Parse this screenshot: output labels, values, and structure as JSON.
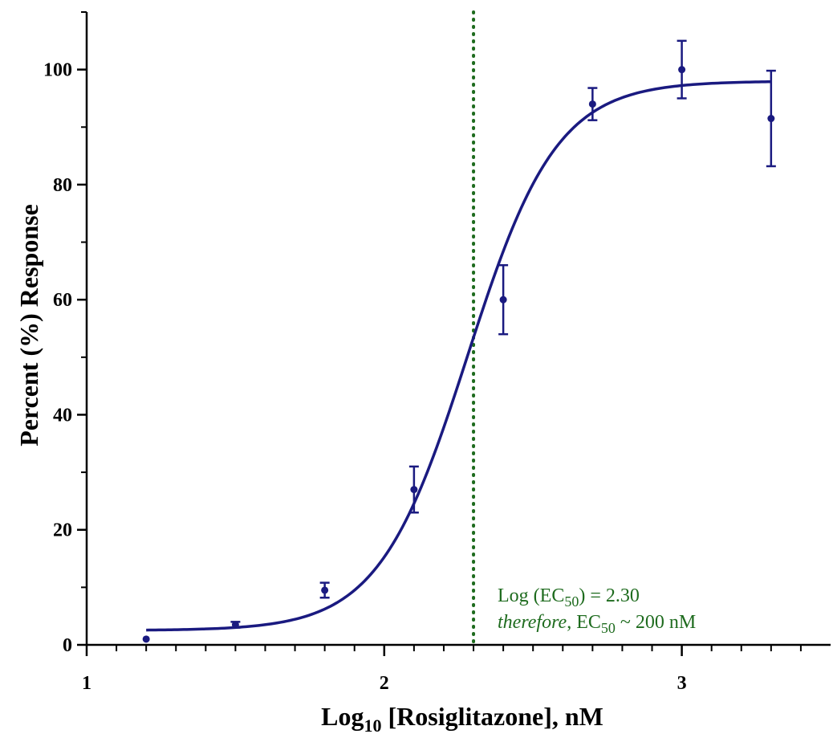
{
  "chart_data": {
    "type": "scatter",
    "xlabel": {
      "main": "Log",
      "sub": "10",
      "rest": " [Rosiglitazone], nM"
    },
    "ylabel": "Percent (%) Response",
    "xlim": [
      1,
      3.5
    ],
    "ylim": [
      0,
      110
    ],
    "x_ticks": [
      1,
      2,
      3
    ],
    "x_tick_labels": [
      "1",
      "2",
      "3"
    ],
    "y_ticks": [
      0,
      20,
      40,
      60,
      80,
      100
    ],
    "y_tick_labels": [
      "0",
      "20",
      "40",
      "60",
      "80",
      "100"
    ],
    "grid": false,
    "series": [
      {
        "x": [
          1.2,
          1.5,
          1.8,
          2.1,
          2.4,
          2.7,
          3.0,
          3.3
        ],
        "y": [
          1,
          3.5,
          9.5,
          27,
          60,
          94,
          100,
          91.5
        ],
        "error": [
          0,
          0.5,
          1.3,
          4,
          6,
          2.8,
          5,
          8.3
        ],
        "color": "#1a1a80"
      }
    ],
    "fit_curve": {
      "model": "sigmoid",
      "bottom": 2.5,
      "top": 98,
      "log_ec50": 2.28,
      "hill_slope": 2.9,
      "x_range": [
        1.2,
        3.3
      ],
      "color": "#1a1a80"
    },
    "reference_line": {
      "x": 2.3,
      "color": "#1e6b1e",
      "style": "dotted"
    },
    "annotations": {
      "line1": {
        "pre": "Log (EC",
        "sub": "50",
        "post": ") = 2.30"
      },
      "line2": {
        "italic": "therefore",
        "pre": ", EC",
        "sub": "50",
        "post": " ~ 200 nM"
      }
    }
  }
}
